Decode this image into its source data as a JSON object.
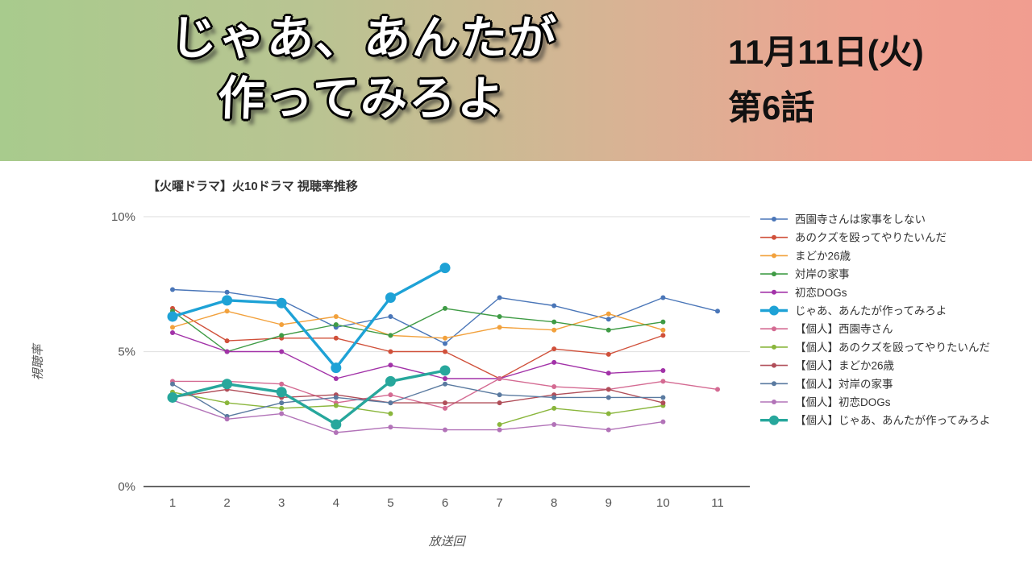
{
  "header": {
    "title_line1": "じゃあ、あんたが",
    "title_line2": "作ってみろよ",
    "date_line": "11月11日(火)",
    "episode_line": "第6話"
  },
  "chart_data": {
    "type": "line",
    "title": "【火曜ドラマ】火10ドラマ 視聴率推移",
    "xlabel": "放送回",
    "ylabel": "視聴率",
    "x": [
      1,
      2,
      3,
      4,
      5,
      6,
      7,
      8,
      9,
      10,
      11
    ],
    "ylim": [
      0,
      10
    ],
    "yticks": [
      {
        "value": 0,
        "label": "0%"
      },
      {
        "value": 5,
        "label": "5%"
      },
      {
        "value": 10,
        "label": "10%"
      }
    ],
    "grid": true,
    "legend_position": "right",
    "unit": "%",
    "series": [
      {
        "name": "西園寺さんは家事をしない",
        "color": "#4a76b8",
        "bold": false,
        "values": [
          7.3,
          7.2,
          6.9,
          5.9,
          6.3,
          5.3,
          7.0,
          6.7,
          6.2,
          7.0,
          6.5
        ]
      },
      {
        "name": "あのクズを殴ってやりたいんだ",
        "color": "#d0503a",
        "bold": false,
        "values": [
          6.6,
          5.4,
          5.5,
          5.5,
          5.0,
          5.0,
          4.0,
          5.1,
          4.9,
          5.6
        ]
      },
      {
        "name": "まどか26歳",
        "color": "#f2a13c",
        "bold": false,
        "values": [
          5.9,
          6.5,
          6.0,
          6.3,
          5.6,
          5.5,
          5.9,
          5.8,
          6.4,
          5.8
        ]
      },
      {
        "name": "対岸の家事",
        "color": "#3f9b45",
        "bold": false,
        "values": [
          6.5,
          5.0,
          5.6,
          6.0,
          5.6,
          6.6,
          6.3,
          6.1,
          5.8,
          6.1
        ]
      },
      {
        "name": "初恋DOGs",
        "color": "#a232a8",
        "bold": false,
        "values": [
          5.7,
          5.0,
          5.0,
          4.0,
          4.5,
          4.0,
          4.0,
          4.6,
          4.2,
          4.3
        ]
      },
      {
        "name": "じゃあ、あんたが作ってみろよ",
        "color": "#1ea2d6",
        "bold": true,
        "values": [
          6.3,
          6.9,
          6.8,
          4.4,
          7.0,
          8.1
        ]
      },
      {
        "name": "【個人】西園寺さん",
        "color": "#d46a92",
        "bold": false,
        "values": [
          3.9,
          3.9,
          3.8,
          3.1,
          3.4,
          2.9,
          4.0,
          3.7,
          3.6,
          3.9,
          3.6
        ]
      },
      {
        "name": "【個人】あのクズを殴ってやりたいんだ",
        "color": "#8ab63c",
        "bold": false,
        "values": [
          3.5,
          3.1,
          2.9,
          3.0,
          2.7,
          null,
          2.3,
          2.9,
          2.7,
          3.0
        ]
      },
      {
        "name": "【個人】まどか26歳",
        "color": "#b04e59",
        "bold": false,
        "values": [
          3.3,
          3.6,
          3.3,
          3.4,
          3.1,
          3.1,
          3.1,
          3.4,
          3.6,
          3.1
        ]
      },
      {
        "name": "【個人】対岸の家事",
        "color": "#5a7aa0",
        "bold": false,
        "values": [
          3.8,
          2.6,
          3.1,
          3.3,
          3.1,
          3.8,
          3.4,
          3.3,
          3.3,
          3.3
        ]
      },
      {
        "name": "【個人】初恋DOGs",
        "color": "#b273b8",
        "bold": false,
        "values": [
          3.2,
          2.5,
          2.7,
          2.0,
          2.2,
          2.1,
          2.1,
          2.3,
          2.1,
          2.4
        ]
      },
      {
        "name": "【個人】じゃあ、あんたが作ってみろよ",
        "color": "#27a79c",
        "bold": true,
        "values": [
          3.3,
          3.8,
          3.5,
          2.3,
          3.9,
          4.3
        ]
      }
    ]
  }
}
